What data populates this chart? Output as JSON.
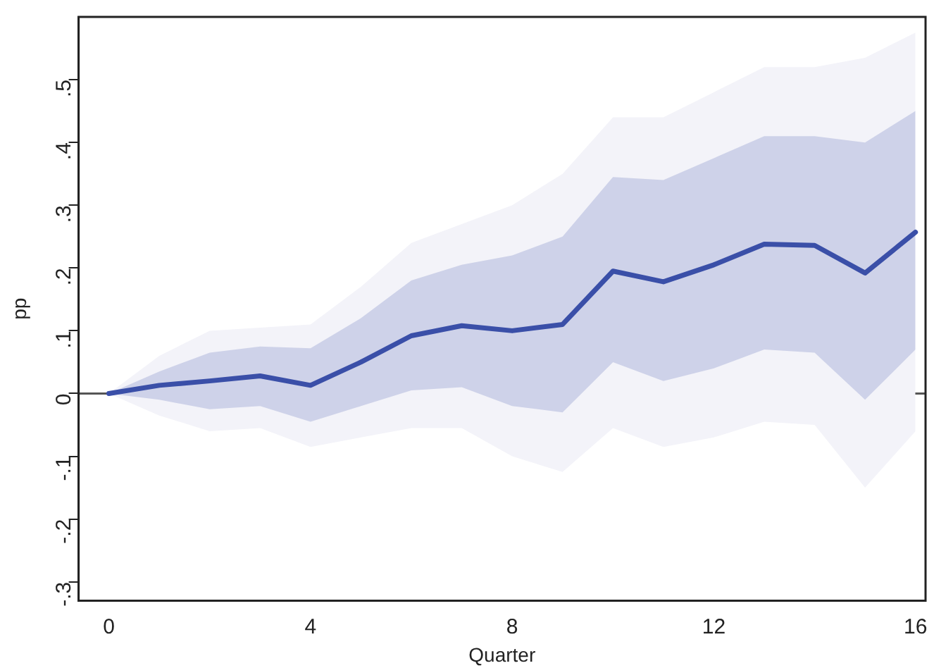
{
  "chart_data": {
    "type": "line",
    "xlabel": "Quarter",
    "ylabel": "pp",
    "x": [
      0,
      1,
      2,
      3,
      4,
      5,
      6,
      7,
      8,
      9,
      10,
      11,
      12,
      13,
      14,
      15,
      16
    ],
    "series": [
      {
        "color": "#f3f3f9",
        "values": [
          null,
          null,
          null,
          null,
          null,
          null,
          null,
          null,
          null,
          null,
          null,
          null,
          null,
          null,
          null,
          null,
          null
        ],
        "lower": [
          0,
          -0.035,
          -0.06,
          -0.055,
          -0.085,
          -0.07,
          -0.055,
          -0.055,
          -0.1,
          -0.125,
          -0.055,
          -0.085,
          -0.07,
          -0.045,
          -0.05,
          -0.15,
          -0.06
        ],
        "upper": [
          0,
          0.06,
          0.1,
          0.105,
          0.11,
          0.17,
          0.24,
          0.27,
          0.3,
          0.35,
          0.44,
          0.44,
          0.48,
          0.52,
          0.52,
          0.535,
          0.575
        ]
      },
      {
        "color": "#3a4fa8",
        "values": [
          0,
          0.013,
          0.02,
          0.028,
          0.013,
          0.05,
          0.092,
          0.108,
          0.1,
          0.11,
          0.195,
          0.178,
          0.205,
          0.238,
          0.236,
          0.192,
          0.257
        ],
        "lower": [
          0,
          -0.01,
          -0.025,
          -0.02,
          -0.045,
          -0.02,
          0.005,
          0.01,
          -0.02,
          -0.03,
          0.05,
          0.02,
          0.04,
          0.07,
          0.065,
          -0.01,
          0.07
        ],
        "upper": [
          0,
          0.035,
          0.065,
          0.075,
          0.072,
          0.12,
          0.18,
          0.205,
          0.22,
          0.25,
          0.345,
          0.34,
          0.375,
          0.41,
          0.41,
          0.4,
          0.45
        ]
      }
    ],
    "xlim": [
      -0.6,
      16.2
    ],
    "xticks": [
      0,
      4,
      8,
      12,
      16
    ],
    "ylim": [
      -0.33,
      0.6
    ],
    "yticks": [
      {
        "value": -0.3,
        "label": "-.3"
      },
      {
        "value": -0.2,
        "label": "-.2"
      },
      {
        "value": -0.1,
        "label": "-.1"
      },
      0,
      {
        "value": 0.1,
        "label": ".1"
      },
      {
        "value": 0.2,
        "label": ".2"
      },
      {
        "value": 0.3,
        "label": ".3"
      },
      {
        "value": 0.4,
        "label": ".4"
      },
      {
        "value": 0.5,
        "label": ".5"
      }
    ],
    "ref_lines": [
      {
        "axis": "y",
        "value": 0,
        "color": "#555555"
      }
    ],
    "grid": false,
    "legend": false,
    "marker": "none",
    "line_style": "solid"
  }
}
